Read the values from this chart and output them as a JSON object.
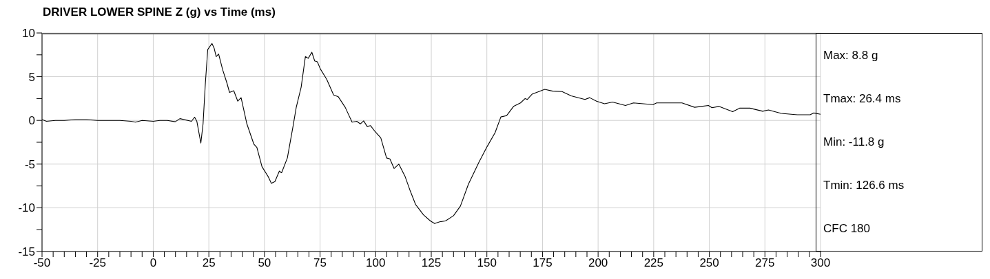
{
  "chart_data": {
    "type": "line",
    "title": "DRIVER LOWER SPINE Z (g) vs Time (ms)",
    "x": [
      -50,
      -48,
      -44,
      -40,
      -35,
      -30,
      -25,
      -20,
      -15,
      -10,
      -8,
      -5,
      0,
      3,
      6.3,
      9.9,
      12,
      17.2,
      18.6,
      19.6,
      21.4,
      22.4,
      23.4,
      24.5,
      26.4,
      27.4,
      28.3,
      29.4,
      31.2,
      33.1,
      34.3,
      36.2,
      38,
      39.5,
      42.1,
      45.2,
      46.6,
      48.9,
      51.6,
      53.1,
      54.7,
      56.7,
      57.7,
      60.3,
      62.9,
      64.3,
      66.5,
      68.4,
      69.7,
      71.3,
      72.6,
      73.8,
      75.1,
      78,
      81.1,
      83.2,
      86.3,
      89.4,
      91.5,
      93.1,
      94.6,
      96.2,
      97.7,
      99.8,
      102.3,
      104.9,
      106.4,
      108.3,
      110.4,
      113.2,
      115.3,
      117.9,
      121.5,
      124.6,
      126.5,
      128.8,
      131.4,
      135,
      138.1,
      141.7,
      146.4,
      150.1,
      153.7,
      156.3,
      158.9,
      162,
      165.1,
      167.2,
      168.2,
      170.3,
      173.4,
      176,
      179.6,
      183.8,
      187.9,
      194.1,
      196.2,
      199.3,
      202.9,
      206.5,
      212.3,
      215.9,
      224.7,
      226.3,
      234.6,
      237.7,
      243.4,
      249.6,
      251.2,
      254.3,
      260.5,
      263.6,
      268.3,
      274,
      276.6,
      282.3,
      289.6,
      295.3,
      296.9,
      300
    ],
    "series": [
      {
        "color": "#000000",
        "values": [
          0.1,
          -0.1,
          0,
          0,
          0.1,
          0.1,
          0,
          0,
          0,
          -0.1,
          -0.2,
          0,
          -0.1,
          0,
          0,
          -0.15,
          0.2,
          -0.1,
          0.37,
          -0.1,
          -2.6,
          -0.4,
          4.1,
          8.1,
          8.8,
          8.25,
          7.3,
          7.6,
          5.8,
          4.3,
          3.2,
          3.4,
          2.2,
          2.6,
          -0.4,
          -2.7,
          -3.1,
          -5.3,
          -6.4,
          -7.2,
          -7,
          -5.8,
          -6,
          -4.3,
          -0.6,
          1.5,
          3.8,
          7.3,
          7.1,
          7.8,
          6.8,
          6.7,
          5.9,
          4.7,
          2.9,
          2.7,
          1.5,
          -0.2,
          -0.1,
          -0.4,
          -0.05,
          -0.7,
          -0.6,
          -1.3,
          -2,
          -4.3,
          -4.4,
          -5.5,
          -5,
          -6.4,
          -7.9,
          -9.6,
          -10.8,
          -11.5,
          -11.8,
          -11.6,
          -11.5,
          -10.9,
          -9.8,
          -7.3,
          -4.8,
          -3,
          -1.4,
          0.4,
          0.55,
          1.6,
          2,
          2.5,
          2.4,
          3,
          3.3,
          3.55,
          3.35,
          3.3,
          2.8,
          2.4,
          2.6,
          2.2,
          1.9,
          2.1,
          1.7,
          2,
          1.8,
          2,
          2,
          2,
          1.5,
          1.7,
          1.45,
          1.6,
          1,
          1.4,
          1.4,
          1.05,
          1.2,
          0.8,
          0.65,
          0.65,
          0.85,
          0.7
        ]
      }
    ],
    "xlim": [
      -50,
      300
    ],
    "xticks": [
      -50,
      {
        "value": -45,
        "label": null
      },
      {
        "value": -40,
        "label": null
      },
      {
        "value": -35,
        "label": null
      },
      {
        "value": -30,
        "label": null
      },
      -25,
      {
        "value": -20,
        "label": null
      },
      {
        "value": -15,
        "label": null
      },
      {
        "value": -10,
        "label": null
      },
      {
        "value": -5,
        "label": null
      },
      0,
      {
        "value": 5,
        "label": null
      },
      {
        "value": 10,
        "label": null
      },
      {
        "value": 15,
        "label": null
      },
      {
        "value": 20,
        "label": null
      },
      25,
      {
        "value": 30,
        "label": null
      },
      {
        "value": 35,
        "label": null
      },
      {
        "value": 40,
        "label": null
      },
      {
        "value": 45,
        "label": null
      },
      50,
      {
        "value": 55,
        "label": null
      },
      {
        "value": 60,
        "label": null
      },
      {
        "value": 65,
        "label": null
      },
      {
        "value": 70,
        "label": null
      },
      75,
      {
        "value": 80,
        "label": null
      },
      {
        "value": 85,
        "label": null
      },
      {
        "value": 90,
        "label": null
      },
      {
        "value": 95,
        "label": null
      },
      100,
      {
        "value": 105,
        "label": null
      },
      {
        "value": 110,
        "label": null
      },
      {
        "value": 115,
        "label": null
      },
      {
        "value": 120,
        "label": null
      },
      125,
      {
        "value": 130,
        "label": null
      },
      {
        "value": 135,
        "label": null
      },
      {
        "value": 140,
        "label": null
      },
      {
        "value": 145,
        "label": null
      },
      150,
      {
        "value": 155,
        "label": null
      },
      {
        "value": 160,
        "label": null
      },
      {
        "value": 165,
        "label": null
      },
      {
        "value": 170,
        "label": null
      },
      175,
      {
        "value": 180,
        "label": null
      },
      {
        "value": 185,
        "label": null
      },
      {
        "value": 190,
        "label": null
      },
      {
        "value": 195,
        "label": null
      },
      200,
      {
        "value": 205,
        "label": null
      },
      {
        "value": 210,
        "label": null
      },
      {
        "value": 215,
        "label": null
      },
      {
        "value": 220,
        "label": null
      },
      225,
      {
        "value": 230,
        "label": null
      },
      {
        "value": 235,
        "label": null
      },
      {
        "value": 240,
        "label": null
      },
      {
        "value": 245,
        "label": null
      },
      250,
      {
        "value": 255,
        "label": null
      },
      {
        "value": 260,
        "label": null
      },
      {
        "value": 265,
        "label": null
      },
      {
        "value": 270,
        "label": null
      },
      275,
      {
        "value": 280,
        "label": null
      },
      {
        "value": 285,
        "label": null
      },
      {
        "value": 290,
        "label": null
      },
      {
        "value": 295,
        "label": null
      },
      300
    ],
    "ylim": [
      -15,
      10
    ],
    "yticks": [
      -15,
      {
        "value": -12.5,
        "label": null
      },
      -10,
      {
        "value": -7.5,
        "label": null
      },
      -5,
      {
        "value": -2.5,
        "label": null
      },
      0,
      {
        "value": 2.5,
        "label": null
      },
      5,
      {
        "value": 7.5,
        "label": null
      },
      10
    ],
    "grid": true,
    "annotations": [
      "Max: 8.8 g",
      "Tmax: 26.4 ms",
      "Min: -11.8 g",
      "Tmin: 126.6 ms",
      "CFC 180"
    ]
  }
}
